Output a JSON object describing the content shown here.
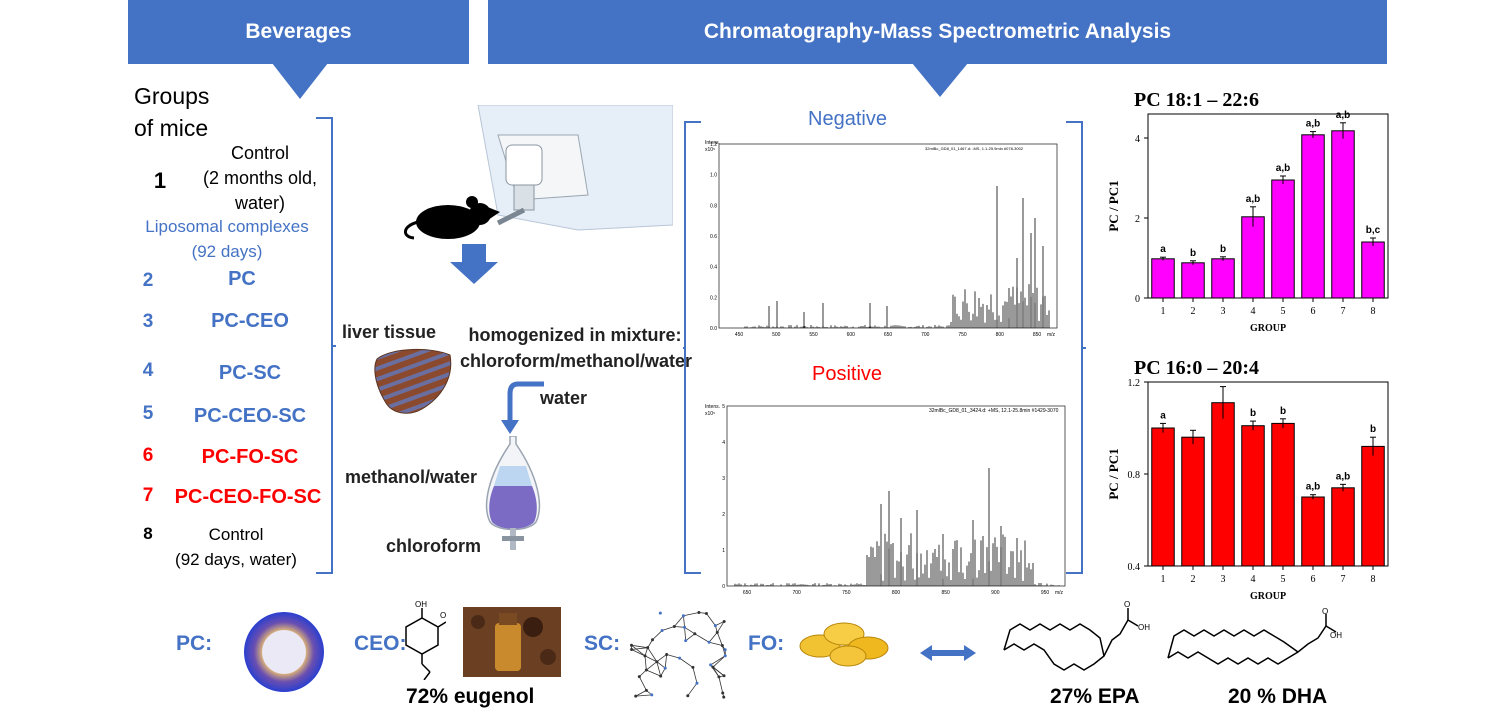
{
  "headers": {
    "beverages": "Beverages",
    "analysis": "Chromatography-Mass Spectrometric Analysis"
  },
  "groups": {
    "title_line1": "Groups",
    "title_line2": "of mice",
    "liposomal_line1": "Liposomal complexes",
    "liposomal_line2": "(92 days)",
    "items": [
      {
        "num": "1",
        "lines": [
          "Control",
          "(2 months old,",
          "water)"
        ]
      },
      {
        "num": "2",
        "label": "PC"
      },
      {
        "num": "3",
        "label": "PC-CEO"
      },
      {
        "num": "4",
        "label": "PC-SC"
      },
      {
        "num": "5",
        "label": "PC-CEO-SC"
      },
      {
        "num": "6",
        "label": "PC-FO-SC"
      },
      {
        "num": "7",
        "label": "PC-CEO-FO-SC"
      },
      {
        "num": "8",
        "lines": [
          "Control",
          "(92 days, water)"
        ]
      }
    ]
  },
  "process": {
    "liver": "liver tissue",
    "homog_line1": "homogenized in mixture:",
    "homog_line2": "chloroform/methanol/water",
    "water": "water",
    "methanol_water": "methanol/water",
    "chloroform": "chloroform"
  },
  "spectra": {
    "negative": "Negative",
    "positive": "Positive",
    "neg_header": "32mlBc_GD8_01_1467.d: -MS, 1.1-25.9min #078-3002",
    "pos_header": "32mlBc_GD8_01_3424.d: +MS, 12.1-25.8min #1429-3070",
    "intens": "Intens.",
    "neg_exp": "x10⁵",
    "pos_exp": "x10⁵",
    "mz": "m/z",
    "neg_yticks": [
      "1.2",
      "1.0",
      "0.8",
      "0.6",
      "0.4",
      "0.2",
      "0.0"
    ],
    "neg_xticks": [
      "450",
      "500",
      "550",
      "600",
      "650",
      "700",
      "750",
      "800",
      "850"
    ],
    "pos_yticks": [
      "5",
      "4",
      "3",
      "2",
      "1",
      "0"
    ],
    "pos_xticks": [
      "650",
      "700",
      "750",
      "800",
      "850",
      "900",
      "950"
    ]
  },
  "chart_data": [
    {
      "type": "bar",
      "title": "PC 18:1 – 22:6",
      "xlabel": "GROUP",
      "ylabel": "PC / PC1",
      "categories": [
        "1",
        "2",
        "3",
        "4",
        "5",
        "6",
        "7",
        "8"
      ],
      "values": [
        0.98,
        0.88,
        0.98,
        2.03,
        2.95,
        4.08,
        4.18,
        1.4
      ],
      "errors": [
        0.04,
        0.05,
        0.05,
        0.25,
        0.1,
        0.08,
        0.2,
        0.1
      ],
      "annotations": [
        "a",
        "b",
        "b",
        "a,b",
        "a,b",
        "a,b",
        "a,b",
        "b,c"
      ],
      "ylim": [
        0,
        4.6
      ],
      "yticks": [
        "0",
        "2",
        "4"
      ],
      "color": "#FF00FF"
    },
    {
      "type": "bar",
      "title": "PC 16:0 – 20:4",
      "xlabel": "GROUP",
      "ylabel": "PC / PC1",
      "categories": [
        "1",
        "2",
        "3",
        "4",
        "5",
        "6",
        "7",
        "8"
      ],
      "values": [
        1.0,
        0.96,
        1.11,
        1.01,
        1.02,
        0.7,
        0.74,
        0.92
      ],
      "errors": [
        0.02,
        0.03,
        0.07,
        0.02,
        0.02,
        0.01,
        0.015,
        0.04
      ],
      "annotations": [
        "a",
        "",
        "",
        "b",
        "b",
        "a,b",
        "a,b",
        "b"
      ],
      "ylim": [
        0.4,
        1.2
      ],
      "yticks": [
        "0.4",
        "0.8",
        "1.2"
      ],
      "color": "#FF0000"
    }
  ],
  "bottom": {
    "pc": "PC:",
    "ceo": "CEO:",
    "sc": "SC:",
    "fo": "FO:",
    "eugenol": "72% eugenol",
    "epa": "27% EPA",
    "dha": "20 % DHA",
    "oh": "OH",
    "o": "O"
  },
  "colors": {
    "banner": "#4472C4",
    "blue_text": "#4472C4",
    "red_text": "#FF0000"
  }
}
